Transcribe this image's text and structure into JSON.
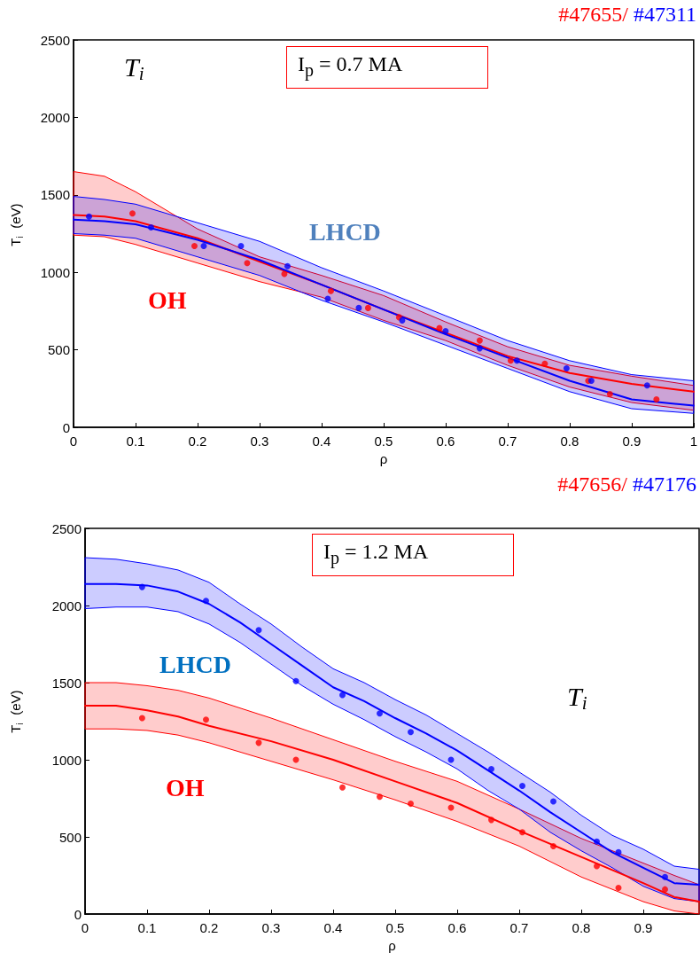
{
  "chart_data": [
    {
      "type": "line",
      "title": "#47655/ #47311",
      "xlabel": "ρ",
      "ylabel": "T$_{i}$  (eV)",
      "annotations": [
        "T$_{i}$",
        "I$_{p}$ = 0.7 MA"
      ],
      "xlim": [
        0,
        1
      ],
      "ylim": [
        0,
        2500
      ],
      "xticks": [
        0,
        0.1,
        0.2,
        0.3,
        0.4,
        0.5,
        0.6,
        0.7,
        0.8,
        0.9,
        1
      ],
      "yticks": [
        0,
        500,
        1000,
        1500,
        2000,
        2500
      ],
      "grid": false,
      "legend": false,
      "series": [
        {
          "name": "OH",
          "marker": "none",
          "color": "#ff0000",
          "x": [
            0,
            0.05,
            0.1,
            0.2,
            0.3,
            0.4,
            0.5,
            0.6,
            0.7,
            0.8,
            0.9,
            1
          ],
          "values": [
            1370,
            1360,
            1330,
            1220,
            1070,
            920,
            760,
            610,
            460,
            350,
            280,
            230
          ],
          "lower": [
            1240,
            1230,
            1180,
            1060,
            940,
            840,
            690,
            560,
            400,
            260,
            160,
            110
          ],
          "upper": [
            1650,
            1620,
            1520,
            1280,
            1100,
            980,
            850,
            680,
            520,
            400,
            330,
            270
          ]
        },
        {
          "name": "LHCD",
          "marker": "none",
          "color": "#0000ff",
          "x": [
            0,
            0.05,
            0.1,
            0.2,
            0.3,
            0.4,
            0.5,
            0.6,
            0.7,
            0.8,
            0.9,
            1
          ],
          "values": [
            1340,
            1330,
            1310,
            1210,
            1080,
            920,
            760,
            600,
            450,
            300,
            180,
            140
          ],
          "lower": [
            1250,
            1240,
            1220,
            1100,
            980,
            820,
            680,
            530,
            380,
            230,
            120,
            90
          ],
          "upper": [
            1490,
            1470,
            1440,
            1320,
            1200,
            1030,
            880,
            720,
            560,
            430,
            340,
            300
          ]
        },
        {
          "type": "scatter",
          "marker": "circle",
          "color": "#ff0000",
          "x": [
            0.095,
            0.195,
            0.28,
            0.34,
            0.415,
            0.475,
            0.525,
            0.59,
            0.655,
            0.705,
            0.76,
            0.83,
            0.865,
            0.94
          ],
          "values": [
            1380,
            1170,
            1060,
            990,
            880,
            770,
            710,
            640,
            560,
            430,
            410,
            300,
            215,
            180
          ]
        },
        {
          "type": "scatter",
          "marker": "circle",
          "color": "#0000ff",
          "x": [
            0.025,
            0.125,
            0.21,
            0.27,
            0.345,
            0.41,
            0.46,
            0.53,
            0.6,
            0.655,
            0.715,
            0.795,
            0.835,
            0.925
          ],
          "values": [
            1360,
            1290,
            1170,
            1170,
            1040,
            830,
            770,
            690,
            620,
            510,
            430,
            380,
            300,
            270
          ]
        }
      ]
    },
    {
      "type": "line",
      "title": "#47656/ #47176",
      "xlabel": "ρ",
      "ylabel": "T$_{i}$  (eV)",
      "annotations": [
        "T$_{i}$",
        "I$_{p}$ = 1.2 MA"
      ],
      "xlim": [
        0,
        0.99
      ],
      "ylim": [
        0,
        2500
      ],
      "xticks": [
        0,
        0.1,
        0.2,
        0.3,
        0.4,
        0.5,
        0.6,
        0.7,
        0.8,
        0.9
      ],
      "yticks": [
        0,
        500,
        1000,
        1500,
        2000,
        2500
      ],
      "grid": false,
      "legend": false,
      "series": [
        {
          "name": "OH",
          "marker": "none",
          "color": "#ff0000",
          "x": [
            0,
            0.05,
            0.1,
            0.15,
            0.2,
            0.3,
            0.4,
            0.5,
            0.6,
            0.7,
            0.8,
            0.9,
            0.95,
            0.99
          ],
          "values": [
            1350,
            1350,
            1320,
            1280,
            1220,
            1120,
            1000,
            860,
            720,
            540,
            370,
            200,
            110,
            80
          ],
          "lower": [
            1200,
            1200,
            1190,
            1160,
            1110,
            990,
            870,
            740,
            600,
            440,
            240,
            80,
            20,
            0
          ],
          "upper": [
            1500,
            1500,
            1480,
            1450,
            1400,
            1270,
            1130,
            990,
            860,
            680,
            490,
            330,
            250,
            190
          ]
        },
        {
          "name": "LHCD",
          "marker": "none",
          "color": "#0000ff",
          "x": [
            0,
            0.05,
            0.1,
            0.15,
            0.2,
            0.25,
            0.3,
            0.35,
            0.4,
            0.45,
            0.5,
            0.55,
            0.6,
            0.65,
            0.7,
            0.75,
            0.8,
            0.85,
            0.9,
            0.95,
            0.99
          ],
          "values": [
            2140,
            2140,
            2130,
            2090,
            2010,
            1890,
            1750,
            1610,
            1470,
            1380,
            1270,
            1170,
            1060,
            930,
            800,
            660,
            530,
            400,
            300,
            200,
            190
          ],
          "lower": [
            1980,
            1990,
            1990,
            1960,
            1880,
            1760,
            1620,
            1480,
            1360,
            1260,
            1150,
            1050,
            940,
            800,
            680,
            530,
            410,
            300,
            180,
            100,
            80
          ],
          "upper": [
            2310,
            2300,
            2270,
            2230,
            2150,
            2010,
            1880,
            1730,
            1590,
            1500,
            1390,
            1290,
            1170,
            1050,
            920,
            790,
            640,
            510,
            420,
            310,
            290
          ]
        },
        {
          "type": "scatter",
          "marker": "circle",
          "color": "#ff0000",
          "x": [
            0.092,
            0.195,
            0.28,
            0.34,
            0.415,
            0.475,
            0.525,
            0.59,
            0.655,
            0.705,
            0.755,
            0.825,
            0.86,
            0.935
          ],
          "values": [
            1270,
            1260,
            1110,
            1000,
            820,
            760,
            715,
            690,
            610,
            530,
            440,
            310,
            170,
            160
          ]
        },
        {
          "type": "scatter",
          "marker": "circle",
          "color": "#0000ff",
          "x": [
            0.092,
            0.195,
            0.28,
            0.34,
            0.415,
            0.475,
            0.525,
            0.59,
            0.655,
            0.705,
            0.755,
            0.825,
            0.86,
            0.935
          ],
          "values": [
            2120,
            2030,
            1840,
            1510,
            1420,
            1300,
            1180,
            1000,
            940,
            830,
            730,
            470,
            400,
            240
          ]
        }
      ]
    }
  ]
}
